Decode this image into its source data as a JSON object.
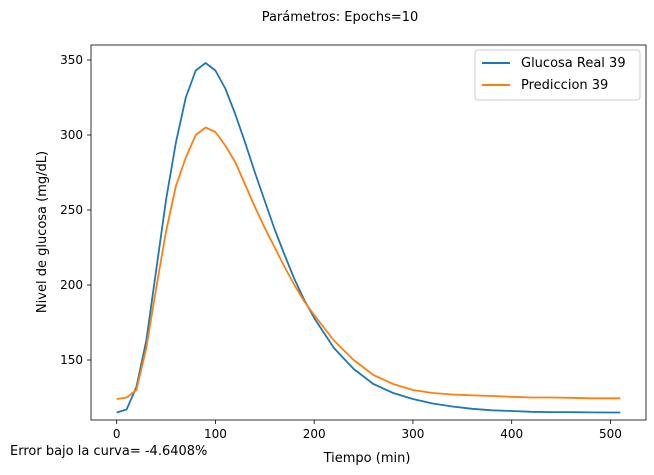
{
  "title": "Parámetros:  Epochs=10",
  "footer_note": "Error bajo la curva= -4.6408%",
  "chart_data": {
    "type": "line",
    "xlabel": "Tiempo (min)",
    "ylabel": "Nivel de glucosa (mg/dL)",
    "xlim": [
      -26,
      536
    ],
    "ylim": [
      110,
      360
    ],
    "xticks": [
      0,
      100,
      200,
      300,
      400,
      500
    ],
    "yticks": [
      150,
      200,
      250,
      300,
      350
    ],
    "grid": false,
    "legend_position": "top-right",
    "series": [
      {
        "name": "Glucosa Real 39",
        "color": "#1f77b4",
        "x": [
          0,
          10,
          20,
          30,
          40,
          50,
          60,
          70,
          80,
          90,
          100,
          110,
          120,
          130,
          140,
          150,
          160,
          170,
          180,
          190,
          200,
          220,
          240,
          260,
          280,
          300,
          320,
          340,
          360,
          380,
          400,
          420,
          440,
          460,
          480,
          500,
          510
        ],
        "y": [
          115,
          117,
          132,
          163,
          210,
          257,
          295,
          325,
          343,
          348,
          343,
          331,
          314,
          295,
          275,
          256,
          237,
          220,
          204,
          190,
          178,
          158,
          144,
          134,
          128,
          124,
          121,
          119,
          117.5,
          116.5,
          116,
          115.5,
          115.3,
          115.2,
          115.1,
          115,
          115
        ]
      },
      {
        "name": "Prediccion 39",
        "color": "#ff7f0e",
        "x": [
          0,
          10,
          20,
          30,
          40,
          50,
          60,
          70,
          80,
          90,
          100,
          110,
          120,
          130,
          140,
          150,
          160,
          170,
          180,
          190,
          200,
          220,
          240,
          260,
          280,
          300,
          320,
          340,
          360,
          380,
          400,
          420,
          440,
          460,
          480,
          500,
          510
        ],
        "y": [
          124,
          125,
          130,
          158,
          198,
          236,
          266,
          285,
          300,
          305,
          302,
          293,
          282,
          267,
          252,
          238,
          225,
          212,
          200,
          189,
          180,
          163,
          150,
          140,
          134,
          130,
          128,
          127,
          126.5,
          126,
          125.5,
          125,
          125,
          124.8,
          124.5,
          124.5,
          124.5
        ]
      }
    ]
  }
}
